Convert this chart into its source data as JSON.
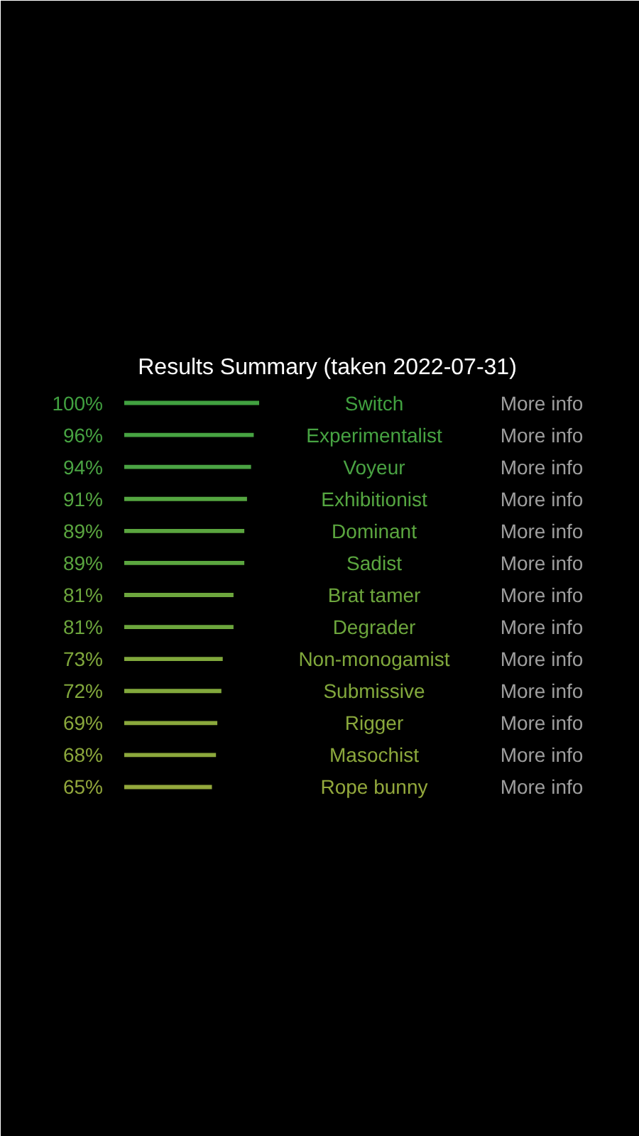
{
  "chart_data": {
    "type": "bar",
    "orientation": "horizontal",
    "title": "Results Summary (taken 2022-07-31)",
    "categories": [
      "Switch",
      "Experimentalist",
      "Voyeur",
      "Exhibitionist",
      "Dominant",
      "Sadist",
      "Brat tamer",
      "Degrader",
      "Non-monogamist",
      "Submissive",
      "Rigger",
      "Masochist",
      "Rope bunny"
    ],
    "values": [
      100,
      96,
      94,
      91,
      89,
      89,
      81,
      81,
      73,
      72,
      69,
      68,
      65
    ],
    "value_labels": [
      "100%",
      "96%",
      "94%",
      "91%",
      "89%",
      "89%",
      "81%",
      "81%",
      "73%",
      "72%",
      "69%",
      "68%",
      "65%"
    ],
    "colors": [
      "#41a140",
      "#47a342",
      "#4aa343",
      "#55a641",
      "#5ba63f",
      "#5ba63f",
      "#6da63d",
      "#6da63d",
      "#80a83c",
      "#82a83c",
      "#8aa83c",
      "#8ca83c",
      "#93a83c"
    ],
    "tick_labels": "y",
    "annotations": [
      "More info",
      "More info",
      "More info",
      "More info",
      "More info",
      "More info",
      "More info",
      "More info",
      "More info",
      "More info",
      "More info",
      "More info",
      "More info"
    ]
  }
}
